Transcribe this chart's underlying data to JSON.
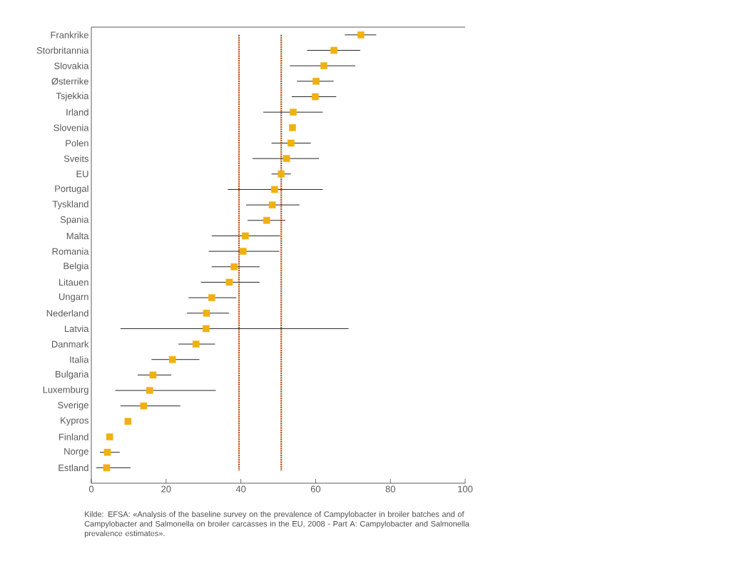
{
  "chart_data": {
    "type": "scatter",
    "orientation": "horizontal",
    "categories": [
      "Frankrike",
      "Storbritannia",
      "Slovakia",
      "Østerrike",
      "Tsjekkia",
      "Irland",
      "Slovenia",
      "Polen",
      "Sveits",
      "EU",
      "Portugal",
      "Tyskland",
      "Spania",
      "Malta",
      "Romania",
      "Belgia",
      "Litauen",
      "Ungarn",
      "Nederland",
      "Latvia",
      "Danmark",
      "Italia",
      "Bulgaria",
      "Luxemburg",
      "Sverige",
      "Kypros",
      "Finland",
      "Norge",
      "Estland"
    ],
    "values": [
      72.1,
      64.9,
      62.2,
      60.1,
      59.9,
      54.0,
      53.8,
      53.4,
      52.2,
      50.8,
      49.0,
      48.4,
      46.9,
      41.2,
      40.6,
      38.2,
      36.9,
      32.2,
      30.8,
      30.7,
      28.0,
      21.7,
      16.5,
      15.6,
      14.0,
      9.8,
      4.9,
      4.3,
      4.1
    ],
    "errors": [
      [
        67.8,
        76.2
      ],
      [
        57.7,
        71.9
      ],
      [
        53.1,
        70.6
      ],
      [
        55.0,
        64.8
      ],
      [
        53.6,
        65.5
      ],
      [
        46.0,
        61.9
      ],
      null,
      [
        48.2,
        58.7
      ],
      [
        43.1,
        60.9
      ],
      [
        48.2,
        53.4
      ],
      [
        36.5,
        61.9
      ],
      [
        41.4,
        55.7
      ],
      [
        41.8,
        51.9
      ],
      [
        32.2,
        50.5
      ],
      [
        31.4,
        50.3
      ],
      [
        32.2,
        45.0
      ],
      [
        29.3,
        45.0
      ],
      [
        26.0,
        38.8
      ],
      [
        25.6,
        36.8
      ],
      [
        7.8,
        68.8
      ],
      [
        23.3,
        33.1
      ],
      [
        16.1,
        28.9
      ],
      [
        12.4,
        21.4
      ],
      [
        6.4,
        33.3
      ],
      [
        7.8,
        23.8
      ],
      null,
      null,
      [
        2.3,
        7.6
      ],
      [
        1.3,
        10.5
      ]
    ],
    "color": "#f0b010",
    "marker": "square",
    "xlim": [
      0,
      100
    ],
    "xticks": [
      0,
      20,
      40,
      60,
      80,
      100
    ],
    "grid": false,
    "ref_lines": [
      {
        "axis": "x",
        "value": 39.5,
        "color": "#b5541a",
        "line_style": "dotted"
      },
      {
        "axis": "x",
        "value": 50.8,
        "color": "#b5541a",
        "line_style": "dotted"
      }
    ],
    "annotations": [
      "Kilde: EFSA: «Analysis of the baseline survey on the prevalence of Campylobacter in broiler batches and of Campylobacter and Salmonella on broiler carcasses in the EU, 2008 - Part A: Campylobacter and Salmonella prevalence estimates»."
    ]
  }
}
